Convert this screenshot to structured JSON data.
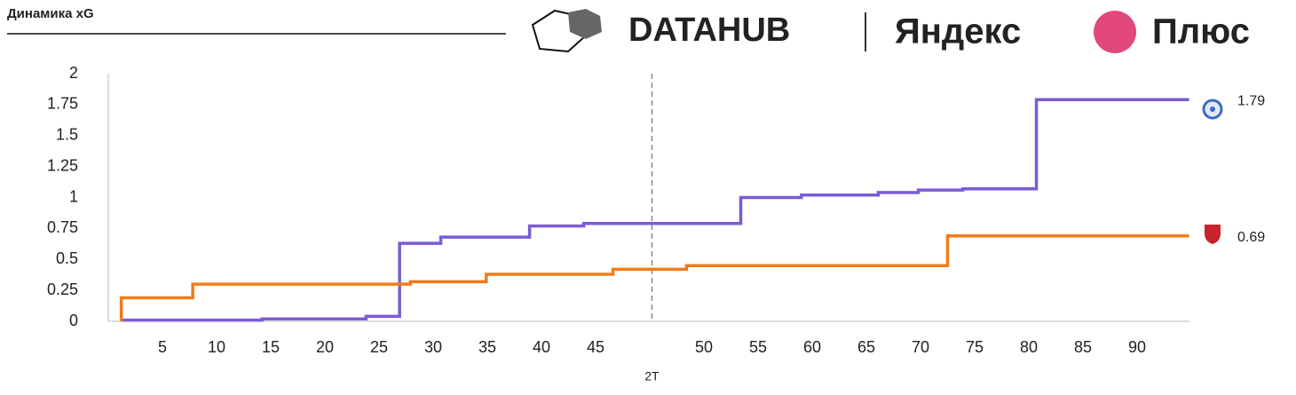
{
  "header": {
    "title": "Динамика xG",
    "logos": [
      "DATAHUB",
      "Яндекс",
      "Плюс"
    ]
  },
  "chart_data": {
    "type": "step",
    "xlim": [
      0,
      100
    ],
    "xticks": [
      5,
      10,
      15,
      20,
      25,
      30,
      35,
      40,
      45,
      {
        "value": 55,
        "label": "50"
      },
      {
        "value": 60,
        "label": "55"
      },
      {
        "value": 65,
        "label": "60"
      },
      {
        "value": 70,
        "label": "65"
      },
      {
        "value": 75,
        "label": "70"
      },
      {
        "value": 80,
        "label": "75"
      },
      {
        "value": 85,
        "label": "80"
      },
      {
        "value": 90,
        "label": "85"
      },
      {
        "value": 95,
        "label": "90"
      }
    ],
    "ylim": [
      0,
      2
    ],
    "yticks": [
      0,
      0.25,
      0.5,
      0.75,
      1,
      1.25,
      1.5,
      1.75,
      2
    ],
    "halftime": {
      "x": 50.2,
      "label": "2T"
    },
    "series": [
      {
        "color": "#7b5cd6",
        "x": [
          1.2,
          14.2,
          23.8,
          26.9,
          30.7,
          38.9,
          43.9,
          58.4,
          64,
          71.1,
          74.8,
          78.9,
          85.7,
          99.8
        ],
        "values": [
          0.01,
          0.02,
          0.04,
          0.63,
          0.68,
          0.77,
          0.79,
          1.0,
          1.02,
          1.04,
          1.06,
          1.07,
          1.79,
          1.79
        ]
      },
      {
        "color": "#f07c1b",
        "x": [
          1.2,
          1.2,
          7.8,
          27.9,
          34.9,
          46.6,
          53.4,
          77.5,
          99.8
        ],
        "values": [
          0,
          0.19,
          0.3,
          0.32,
          0.38,
          0.42,
          0.45,
          0.69,
          0.69
        ]
      }
    ]
  }
}
